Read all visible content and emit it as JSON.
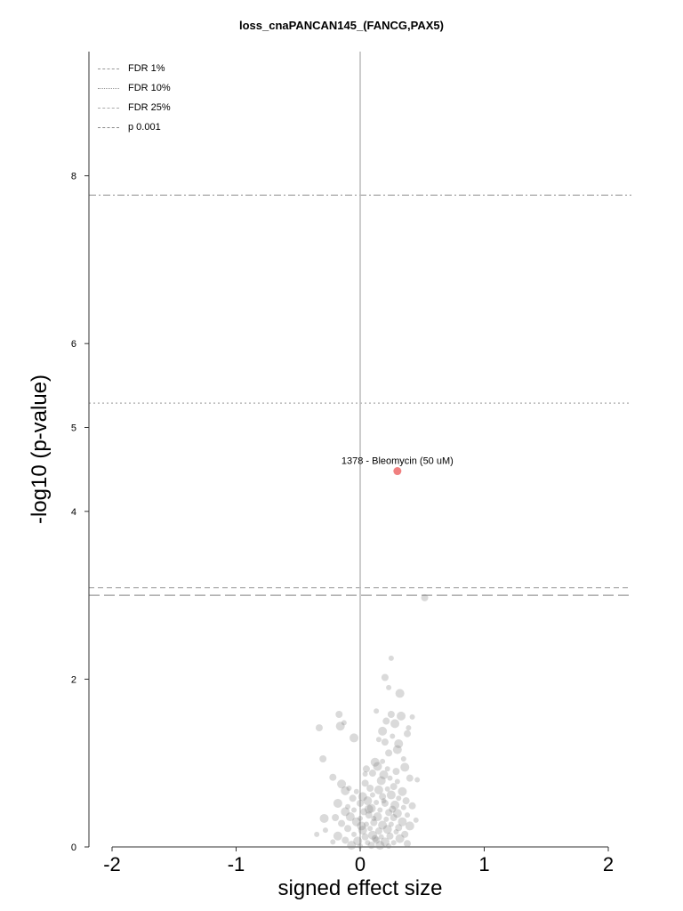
{
  "chart_data": {
    "type": "scatter",
    "title": "loss_cnaPANCAN145_(FANCG,PAX5)",
    "xlabel": "signed effect size",
    "ylabel": "-log10 (p-value)",
    "xlim": [
      -2.2,
      2.2
    ],
    "ylim": [
      0,
      9.5
    ],
    "x_ticks": [
      "-2",
      "-1",
      "0",
      "1",
      "2"
    ],
    "y_ticks": [
      "0",
      "2",
      "4",
      "5",
      "6",
      "8"
    ],
    "grid": false,
    "legend_position": "top-left",
    "thresholds": [
      {
        "name": "FDR 1%",
        "y": 7.77,
        "style": "dashdot"
      },
      {
        "name": "FDR 10%",
        "y": 5.29,
        "style": "dotted"
      },
      {
        "name": "FDR 25%",
        "y": 3.09,
        "style": "dashed"
      },
      {
        "name": "p 0.001",
        "y": 3.0,
        "style": "longdash"
      }
    ],
    "highlighted_points": [
      {
        "label": "1378 - Bleomycin (50 uM)",
        "x": 0.3,
        "y": 4.48,
        "color": "#f08080"
      }
    ],
    "background_points": [
      [
        0.25,
        2.25
      ],
      [
        0.2,
        2.02
      ],
      [
        0.32,
        1.83
      ],
      [
        0.23,
        1.9
      ],
      [
        -0.17,
        1.58
      ],
      [
        -0.16,
        1.44
      ],
      [
        -0.13,
        1.48
      ],
      [
        -0.33,
        1.42
      ],
      [
        -0.05,
        1.3
      ],
      [
        0.13,
        1.62
      ],
      [
        0.25,
        1.58
      ],
      [
        0.33,
        1.56
      ],
      [
        0.42,
        1.55
      ],
      [
        0.21,
        1.5
      ],
      [
        0.28,
        1.47
      ],
      [
        0.39,
        1.42
      ],
      [
        0.38,
        1.35
      ],
      [
        0.18,
        1.38
      ],
      [
        0.26,
        1.32
      ],
      [
        0.2,
        1.25
      ],
      [
        0.31,
        1.23
      ],
      [
        0.15,
        1.28
      ],
      [
        0.23,
        1.12
      ],
      [
        0.3,
        1.16
      ],
      [
        0.35,
        1.05
      ],
      [
        -0.3,
        1.05
      ],
      [
        0.12,
        1.01
      ],
      [
        0.18,
        1.02
      ],
      [
        0.05,
        0.93
      ],
      [
        0.14,
        0.96
      ],
      [
        0.22,
        0.93
      ],
      [
        0.29,
        0.9
      ],
      [
        0.36,
        0.95
      ],
      [
        0.04,
        0.87
      ],
      [
        0.1,
        0.88
      ],
      [
        0.19,
        0.86
      ],
      [
        0.24,
        0.82
      ],
      [
        0.4,
        0.82
      ],
      [
        0.17,
        0.79
      ],
      [
        0.3,
        0.78
      ],
      [
        -0.22,
        0.83
      ],
      [
        -0.15,
        0.75
      ],
      [
        -0.09,
        0.7
      ],
      [
        0.04,
        0.76
      ],
      [
        -0.12,
        0.67
      ],
      [
        -0.03,
        0.66
      ],
      [
        0.08,
        0.7
      ],
      [
        0.15,
        0.68
      ],
      [
        0.22,
        0.69
      ],
      [
        0.27,
        0.72
      ],
      [
        0.34,
        0.66
      ],
      [
        0.46,
        0.8
      ],
      [
        -0.06,
        0.58
      ],
      [
        0.02,
        0.6
      ],
      [
        0.1,
        0.62
      ],
      [
        0.18,
        0.6
      ],
      [
        0.25,
        0.62
      ],
      [
        0.31,
        0.58
      ],
      [
        0.37,
        0.55
      ],
      [
        -0.18,
        0.52
      ],
      [
        -0.1,
        0.48
      ],
      [
        0.0,
        0.52
      ],
      [
        0.06,
        0.55
      ],
      [
        0.13,
        0.53
      ],
      [
        0.2,
        0.52
      ],
      [
        0.28,
        0.5
      ],
      [
        0.35,
        0.47
      ],
      [
        0.42,
        0.49
      ],
      [
        -0.12,
        0.42
      ],
      [
        -0.05,
        0.44
      ],
      [
        0.03,
        0.42
      ],
      [
        0.09,
        0.46
      ],
      [
        0.16,
        0.44
      ],
      [
        0.23,
        0.41
      ],
      [
        0.3,
        0.4
      ],
      [
        0.38,
        0.38
      ],
      [
        -0.2,
        0.35
      ],
      [
        -0.08,
        0.36
      ],
      [
        0.0,
        0.34
      ],
      [
        0.07,
        0.38
      ],
      [
        0.14,
        0.36
      ],
      [
        0.21,
        0.33
      ],
      [
        0.27,
        0.35
      ],
      [
        0.34,
        0.3
      ],
      [
        0.45,
        0.32
      ],
      [
        -0.15,
        0.28
      ],
      [
        -0.03,
        0.3
      ],
      [
        0.05,
        0.27
      ],
      [
        0.11,
        0.29
      ],
      [
        0.18,
        0.26
      ],
      [
        0.25,
        0.27
      ],
      [
        0.31,
        0.23
      ],
      [
        0.4,
        0.25
      ],
      [
        -0.28,
        0.2
      ],
      [
        -0.1,
        0.22
      ],
      [
        0.02,
        0.2
      ],
      [
        0.08,
        0.22
      ],
      [
        0.15,
        0.19
      ],
      [
        0.22,
        0.21
      ],
      [
        0.29,
        0.18
      ],
      [
        0.36,
        0.15
      ],
      [
        -0.18,
        0.13
      ],
      [
        -0.05,
        0.15
      ],
      [
        0.04,
        0.12
      ],
      [
        0.1,
        0.14
      ],
      [
        0.17,
        0.12
      ],
      [
        0.24,
        0.13
      ],
      [
        0.32,
        0.1
      ],
      [
        -0.22,
        0.06
      ],
      [
        -0.12,
        0.08
      ],
      [
        -0.02,
        0.07
      ],
      [
        0.06,
        0.05
      ],
      [
        0.13,
        0.08
      ],
      [
        0.2,
        0.06
      ],
      [
        0.27,
        0.05
      ],
      [
        0.38,
        0.04
      ],
      [
        -0.07,
        0.02
      ],
      [
        0.0,
        0.01
      ],
      [
        0.09,
        0.02
      ],
      [
        0.16,
        0.02
      ],
      [
        0.23,
        0.01
      ],
      [
        0.12,
        0.1
      ],
      [
        0.07,
        0.45
      ],
      [
        0.19,
        0.55
      ],
      [
        0.26,
        0.45
      ],
      [
        0.01,
        0.25
      ],
      [
        0.11,
        0.34
      ],
      [
        0.52,
        2.97
      ],
      [
        -0.29,
        0.34
      ],
      [
        -0.35,
        0.15
      ]
    ]
  }
}
